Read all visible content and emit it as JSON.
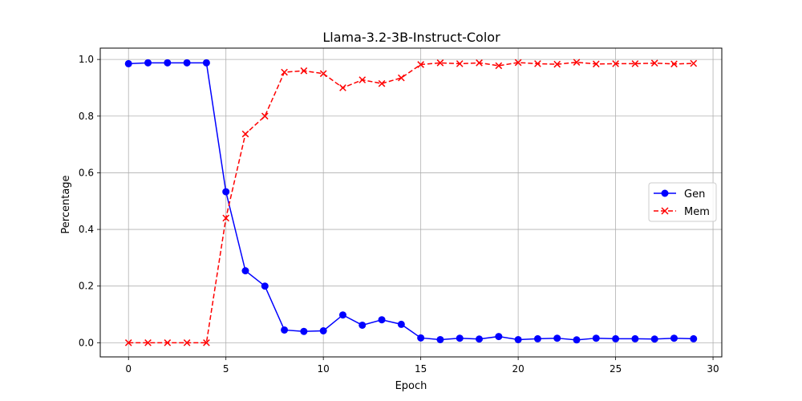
{
  "chart_data": {
    "type": "line",
    "title": "Llama-3.2-3B-Instruct-Color",
    "xlabel": "Epoch",
    "ylabel": "Percentage",
    "xlim": [
      -1.45,
      30.45
    ],
    "ylim": [
      -0.05,
      1.04
    ],
    "xticks": [
      0,
      5,
      10,
      15,
      20,
      25,
      30
    ],
    "yticks": [
      0.0,
      0.2,
      0.4,
      0.6,
      0.8,
      1.0
    ],
    "xtick_labels": [
      "0",
      "5",
      "10",
      "15",
      "20",
      "25",
      "30"
    ],
    "ytick_labels": [
      "0.0",
      "0.2",
      "0.4",
      "0.6",
      "0.8",
      "1.0"
    ],
    "grid": true,
    "legend_position": "center-right",
    "x": [
      0,
      1,
      2,
      3,
      4,
      5,
      6,
      7,
      8,
      9,
      10,
      11,
      12,
      13,
      14,
      15,
      16,
      17,
      18,
      19,
      20,
      21,
      22,
      23,
      24,
      25,
      26,
      27,
      28,
      29
    ],
    "series": [
      {
        "name": "Gen",
        "color": "#0000ff",
        "marker": "circle",
        "line_style": "solid",
        "values": [
          0.985,
          0.988,
          0.988,
          0.988,
          0.988,
          0.533,
          0.254,
          0.2,
          0.045,
          0.04,
          0.042,
          0.098,
          0.062,
          0.081,
          0.065,
          0.017,
          0.011,
          0.016,
          0.013,
          0.022,
          0.011,
          0.014,
          0.016,
          0.01,
          0.016,
          0.014,
          0.014,
          0.013,
          0.016,
          0.014
        ]
      },
      {
        "name": "Mem",
        "color": "#ff0000",
        "marker": "x",
        "line_style": "dashed",
        "values": [
          0.0,
          0.0,
          0.0,
          0.0,
          0.0,
          0.44,
          0.737,
          0.8,
          0.955,
          0.96,
          0.95,
          0.9,
          0.928,
          0.915,
          0.935,
          0.982,
          0.988,
          0.985,
          0.988,
          0.978,
          0.989,
          0.985,
          0.983,
          0.99,
          0.984,
          0.985,
          0.985,
          0.987,
          0.984,
          0.986
        ]
      }
    ]
  }
}
